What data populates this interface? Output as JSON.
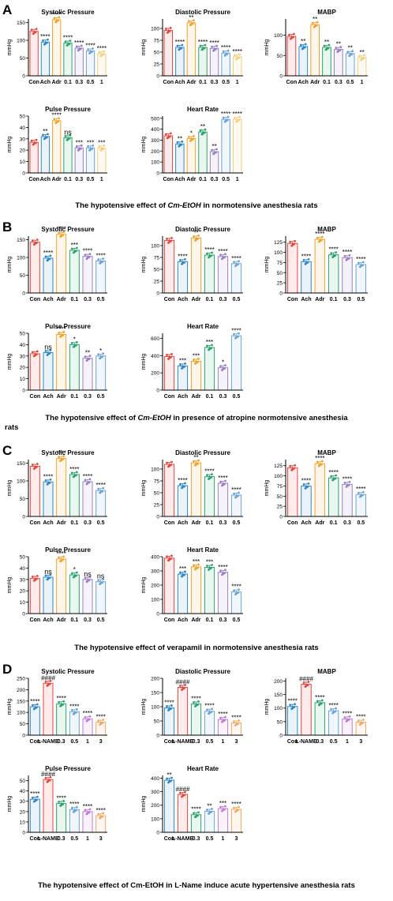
{
  "panels": [
    {
      "letter": "A",
      "caption_parts": [
        "The hypotensive effect of ",
        "Cm-EtOH",
        " in normotensive anesthesia rats"
      ],
      "charts": [
        {
          "title": "Systolic Pressure",
          "ylabel": "mmHg",
          "ylim": [
            0,
            160
          ],
          "yticks": [
            0,
            50,
            100,
            150
          ],
          "categories": [
            "Con",
            "Ach",
            "Adr",
            "0.1",
            "0.3",
            "0.5",
            "1"
          ],
          "values": [
            125,
            95,
            158,
            92,
            78,
            70,
            62
          ],
          "sig": [
            "",
            "****",
            "****",
            "****",
            "****",
            "****",
            "****"
          ]
        },
        {
          "title": "Diastolic Pressure",
          "ylabel": "mmHg",
          "ylim": [
            0,
            120
          ],
          "yticks": [
            0,
            25,
            50,
            75,
            100
          ],
          "categories": [
            "Con",
            "Ach",
            "Adr",
            "0.1",
            "0.3",
            "0.5",
            "1"
          ],
          "values": [
            96,
            60,
            112,
            60,
            58,
            48,
            40
          ],
          "sig": [
            "",
            "****",
            "**",
            "****",
            "****",
            "****",
            "****"
          ]
        },
        {
          "title": "MABP",
          "ylabel": "mmHg",
          "ylim": [
            0,
            140
          ],
          "yticks": [
            0,
            50,
            100
          ],
          "categories": [
            "Con",
            "Ach",
            "Adr",
            "0.1",
            "0.3",
            "0.5",
            "1"
          ],
          "values": [
            97,
            72,
            126,
            70,
            65,
            55,
            45
          ],
          "sig": [
            "",
            "**",
            "**",
            "**",
            "**",
            "**",
            "**"
          ]
        },
        {
          "title": "Pulse Pressure",
          "ylabel": "mmHg",
          "ylim": [
            0,
            50
          ],
          "yticks": [
            0,
            10,
            20,
            30,
            40,
            50
          ],
          "categories": [
            "Con",
            "Ach",
            "Adr",
            "0.1",
            "0.3",
            "0.5",
            "1"
          ],
          "values": [
            27,
            32,
            46,
            31,
            22,
            22,
            22
          ],
          "sig": [
            "",
            "**",
            "****",
            "ns",
            "***",
            "***",
            "***"
          ]
        },
        {
          "title": "Heart Rate",
          "ylabel": "mmHg",
          "ylim": [
            0,
            520
          ],
          "yticks": [
            0,
            100,
            200,
            300,
            400,
            500
          ],
          "categories": [
            "Con",
            "Ach",
            "Adr",
            "0.1",
            "0.3",
            "0.5",
            "1"
          ],
          "values": [
            340,
            265,
            315,
            375,
            195,
            490,
            490
          ],
          "sig": [
            "",
            "**",
            "*",
            "**",
            "**",
            "****",
            "****"
          ]
        }
      ]
    },
    {
      "letter": "B",
      "caption_parts": [
        "The hypotensive effect of ",
        "Cm-EtOH",
        " in presence of atropine normotensive anesthesia rats"
      ],
      "charts": [
        {
          "title": "Systolic Pressure",
          "ylabel": "mmHg",
          "ylim": [
            0,
            160
          ],
          "yticks": [
            0,
            50,
            100,
            150
          ],
          "categories": [
            "Con",
            "Ach",
            "Adr",
            "0.1",
            "0.3",
            "0.5"
          ],
          "values": [
            143,
            98,
            165,
            120,
            103,
            90
          ],
          "sig": [
            "",
            "****",
            "****",
            "***",
            "****",
            "****"
          ]
        },
        {
          "title": "Diastolic Pressure",
          "ylabel": "mmHg",
          "ylim": [
            0,
            120
          ],
          "yticks": [
            0,
            25,
            50,
            75,
            100
          ],
          "categories": [
            "Con",
            "Ach",
            "Adr",
            "0.1",
            "0.3",
            "0.5"
          ],
          "values": [
            111,
            66,
            116,
            80,
            77,
            62
          ],
          "sig": [
            "",
            "****",
            "**",
            "****",
            "****",
            "****"
          ]
        },
        {
          "title": "MABP",
          "ylabel": "mmHg",
          "ylim": [
            0,
            140
          ],
          "yticks": [
            0,
            25,
            50,
            75,
            100,
            125
          ],
          "categories": [
            "Con",
            "Ach",
            "Adr",
            "0.1",
            "0.3",
            "0.5"
          ],
          "values": [
            122,
            77,
            132,
            94,
            87,
            70
          ],
          "sig": [
            "",
            "****",
            "****",
            "****",
            "****",
            "****"
          ]
        },
        {
          "title": "Pulse Pressure",
          "ylabel": "mmHg",
          "ylim": [
            0,
            50
          ],
          "yticks": [
            0,
            10,
            20,
            30,
            40,
            50
          ],
          "categories": [
            "Con",
            "Ach",
            "Adr",
            "0.1",
            "0.3",
            "0.5"
          ],
          "values": [
            32,
            33,
            49,
            40,
            28,
            30
          ],
          "sig": [
            "",
            "ns",
            "****",
            "*",
            "**",
            "*"
          ]
        },
        {
          "title": "Heart Rate",
          "ylabel": "mmHg",
          "ylim": [
            0,
            660
          ],
          "yticks": [
            0,
            200,
            400,
            600
          ],
          "categories": [
            "Con",
            "Ach",
            "Adr",
            "0.1",
            "0.3",
            "0.5"
          ],
          "values": [
            390,
            280,
            335,
            495,
            260,
            630
          ],
          "sig": [
            "",
            "***",
            "***",
            "***",
            "*",
            "****"
          ]
        }
      ]
    },
    {
      "letter": "C",
      "caption_parts": [
        "The hypotensive effect of verapamil in normotensive anesthesia rats"
      ],
      "charts": [
        {
          "title": "Systolic Pressure",
          "ylabel": "mmHg",
          "ylim": [
            0,
            160
          ],
          "yticks": [
            0,
            50,
            100,
            150
          ],
          "categories": [
            "Con",
            "Ach",
            "Adr",
            "0.1",
            "0.3",
            "0.5"
          ],
          "values": [
            141,
            97,
            163,
            118,
            98,
            73
          ],
          "sig": [
            "",
            "****",
            "****",
            "****",
            "****",
            "****"
          ]
        },
        {
          "title": "Diastolic Pressure",
          "ylabel": "mmHg",
          "ylim": [
            0,
            120
          ],
          "yticks": [
            0,
            25,
            50,
            75,
            100
          ],
          "categories": [
            "Con",
            "Ach",
            "Adr",
            "0.1",
            "0.3",
            "0.5"
          ],
          "values": [
            110,
            65,
            113,
            84,
            70,
            45
          ],
          "sig": [
            "",
            "****",
            "**",
            "****",
            "****",
            "****"
          ]
        },
        {
          "title": "MABP",
          "ylabel": "mmHg",
          "ylim": [
            0,
            140
          ],
          "yticks": [
            0,
            25,
            50,
            75,
            100,
            125
          ],
          "categories": [
            "Con",
            "Ach",
            "Adr",
            "0.1",
            "0.3",
            "0.5"
          ],
          "values": [
            120,
            75,
            130,
            95,
            79,
            54
          ],
          "sig": [
            "",
            "****",
            "****",
            "****",
            "****",
            "****"
          ]
        },
        {
          "title": "Pulse Pressure",
          "ylabel": "mmHg",
          "ylim": [
            0,
            50
          ],
          "yticks": [
            0,
            10,
            20,
            30,
            40,
            50
          ],
          "categories": [
            "Con",
            "Ach",
            "Adr",
            "0.1",
            "0.3",
            "0.5"
          ],
          "values": [
            31,
            32,
            48,
            34,
            30,
            28
          ],
          "sig": [
            "",
            "ns",
            "****",
            "*",
            "ns",
            "ns"
          ]
        },
        {
          "title": "Heart Rate",
          "ylabel": "mmHg",
          "ylim": [
            0,
            400
          ],
          "yticks": [
            0,
            100,
            200,
            300,
            400
          ],
          "categories": [
            "Con",
            "Ach",
            "Adr",
            "0.1",
            "0.3",
            "0.5"
          ],
          "values": [
            390,
            278,
            328,
            325,
            290,
            152
          ],
          "sig": [
            "",
            "***",
            "***",
            "***",
            "****",
            "****"
          ]
        }
      ]
    },
    {
      "letter": "D",
      "caption_parts": [
        "The hypotensive effect of Cm-EtOH in L-Name induce acute hypertensive anesthesia rats"
      ],
      "charts": [
        {
          "title": "Systolic Pressure",
          "ylabel": "mmHg",
          "ylim": [
            0,
            250
          ],
          "yticks": [
            0,
            50,
            100,
            150,
            200,
            250
          ],
          "categories": [
            "Con",
            "L-NAME",
            "0.3",
            "0.5",
            "1",
            "3"
          ],
          "values": [
            125,
            228,
            138,
            103,
            72,
            57
          ],
          "sig": [
            "****",
            "####",
            "****",
            "****",
            "****",
            "****"
          ]
        },
        {
          "title": "Diastolic Pressure",
          "ylabel": "mmHg",
          "ylim": [
            0,
            200
          ],
          "yticks": [
            0,
            50,
            100,
            150,
            200
          ],
          "categories": [
            "Con",
            "L-NAME",
            "0.3",
            "0.5",
            "1",
            "3"
          ],
          "values": [
            96,
            168,
            110,
            84,
            55,
            43
          ],
          "sig": [
            "****",
            "####",
            "****",
            "****",
            "****",
            "****"
          ]
        },
        {
          "title": "MABP",
          "ylabel": "mmHg",
          "ylim": [
            0,
            210
          ],
          "yticks": [
            0,
            50,
            100,
            150,
            200
          ],
          "categories": [
            "Con",
            "L-NAME",
            "0.3",
            "0.5",
            "1",
            "3"
          ],
          "values": [
            106,
            188,
            120,
            90,
            60,
            48
          ],
          "sig": [
            "****",
            "####",
            "****",
            "****",
            "****",
            "****"
          ]
        },
        {
          "title": "Pulse Pressure",
          "ylabel": "mmHg",
          "ylim": [
            0,
            55
          ],
          "yticks": [
            0,
            10,
            20,
            30,
            40,
            50
          ],
          "categories": [
            "Con",
            "L-NAME",
            "0.3",
            "0.5",
            "1",
            "3"
          ],
          "values": [
            32,
            51,
            28,
            22,
            20,
            16
          ],
          "sig": [
            "****",
            "####",
            "****",
            "****",
            "****",
            "****"
          ]
        },
        {
          "title": "Heart Rate",
          "ylabel": "mmHg",
          "ylim": [
            0,
            420
          ],
          "yticks": [
            0,
            100,
            200,
            300,
            400
          ],
          "categories": [
            "Con",
            "L-NAME",
            "0.3",
            "0.5",
            "1",
            "3"
          ],
          "values": [
            385,
            280,
            130,
            155,
            175,
            170
          ],
          "sig": [
            "**",
            "####",
            "****",
            "**",
            "***",
            "****"
          ]
        }
      ]
    }
  ],
  "colors": {
    "default_sequence": [
      "#e8443a",
      "#2f86c7",
      "#f2a22a",
      "#2aa36b",
      "#9a7fc4",
      "#6aa3d8",
      "#f2cf7a"
    ],
    "panel_D_sequence": [
      "#2f86c7",
      "#e8443a",
      "#2aa36b",
      "#6aa3d8",
      "#c27ad8",
      "#f2a860"
    ]
  }
}
